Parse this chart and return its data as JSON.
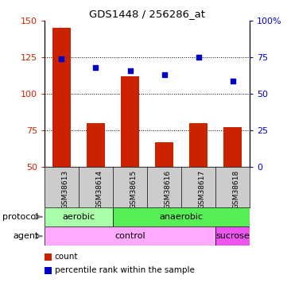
{
  "title": "GDS1448 / 256286_at",
  "samples": [
    "GSM38613",
    "GSM38614",
    "GSM38615",
    "GSM38616",
    "GSM38617",
    "GSM38618"
  ],
  "bar_values": [
    145,
    80,
    112,
    67,
    80,
    77
  ],
  "dot_values": [
    124,
    118,
    116,
    113,
    125,
    109
  ],
  "bar_color": "#cc2200",
  "dot_color": "#0000cc",
  "ylim_left": [
    50,
    150
  ],
  "ylim_right": [
    0,
    100
  ],
  "yticks_left": [
    50,
    75,
    100,
    125,
    150
  ],
  "yticks_right": [
    0,
    25,
    50,
    75,
    100
  ],
  "ytick_labels_left": [
    "50",
    "75",
    "100",
    "125",
    "150"
  ],
  "ytick_labels_right": [
    "0",
    "25",
    "50",
    "75",
    "100%"
  ],
  "protocol_labels": [
    {
      "label": "aerobic",
      "cols": [
        0,
        1
      ],
      "color": "#aaffaa"
    },
    {
      "label": "anaerobic",
      "cols": [
        2,
        3,
        4,
        5
      ],
      "color": "#55ee55"
    }
  ],
  "agent_labels": [
    {
      "label": "control",
      "cols": [
        0,
        1,
        2,
        3,
        4
      ],
      "color": "#ffaaff"
    },
    {
      "label": "sucrose",
      "cols": [
        5
      ],
      "color": "#ee55ee"
    }
  ],
  "row_label_protocol": "protocol",
  "row_label_agent": "agent",
  "legend_bar": "count",
  "legend_dot": "percentile rank within the sample",
  "background_color": "#ffffff",
  "xlabels_bg": "#cccccc",
  "bar_bottom": 50,
  "grid_dotted_color": "#333333"
}
